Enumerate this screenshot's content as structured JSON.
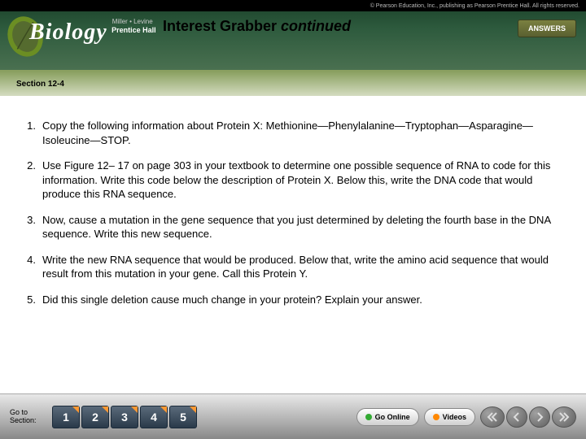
{
  "header": {
    "copyright": "© Pearson Education, Inc., publishing as Pearson Prentice Hall. All rights reserved.",
    "logo_main": "Biology",
    "logo_sub": "Miller • Levine",
    "logo_hall": "Prentice Hall",
    "title_prefix": "Interest Grabber ",
    "title_em": "continued",
    "answers_label": "ANSWERS",
    "section_label": "Section 12-4"
  },
  "questions": [
    {
      "num": "1.",
      "text": "Copy the following information about Protein X: Methionine—Phenylalanine—Tryptophan—Asparagine—Isoleucine—STOP."
    },
    {
      "num": "2.",
      "text": "Use Figure 12– 17 on page 303 in your textbook to determine one possible sequence of RNA to code for this information. Write this code below the description of Protein X. Below this, write the DNA code that would produce this RNA sequence."
    },
    {
      "num": "3.",
      "text": "Now, cause a mutation in the gene sequence that you just determined by deleting the fourth base in the DNA sequence. Write this new sequence."
    },
    {
      "num": "4.",
      "text": "Write the new RNA sequence that would be produced. Below that, write the amino acid sequence that would result from this mutation in your gene. Call this Protein Y."
    },
    {
      "num": "5.",
      "text": "Did this single deletion cause much change in your protein? Explain your answer."
    }
  ],
  "footer": {
    "goto_label": "Go to Section:",
    "nav_buttons": [
      "1",
      "2",
      "3",
      "4",
      "5"
    ],
    "go_online_label": "Go Online",
    "videos_label": "Videos"
  },
  "colors": {
    "header_dark": "#1a4028",
    "header_mid": "#2d5a3d",
    "band_green": "#8aa060",
    "answers_bg": "#5a6030",
    "nav_btn": "#2a3a4a",
    "corner": "#ff9933"
  }
}
